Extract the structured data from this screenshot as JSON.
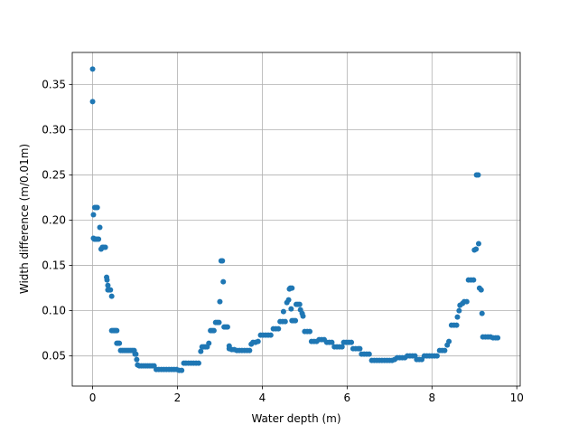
{
  "chart_data": {
    "type": "scatter",
    "xlabel": "Water depth (m)",
    "ylabel": "Width difference (m/0.01m)",
    "xlim": [
      -0.48,
      10.08
    ],
    "ylim": [
      0.0167,
      0.3853
    ],
    "xticks": [
      0,
      2,
      4,
      6,
      8,
      10
    ],
    "yticks": [
      0.05,
      0.1,
      0.15,
      0.2,
      0.25,
      0.3,
      0.35
    ],
    "grid": true,
    "marker_color": "#1f77b4",
    "series": [
      {
        "points": [
          [
            0.0,
            0.367
          ],
          [
            0.0,
            0.331
          ],
          [
            0.02,
            0.206
          ],
          [
            0.02,
            0.18
          ],
          [
            0.05,
            0.214
          ],
          [
            0.08,
            0.214
          ],
          [
            0.11,
            0.214
          ],
          [
            0.04,
            0.179
          ],
          [
            0.07,
            0.179
          ],
          [
            0.1,
            0.179
          ],
          [
            0.14,
            0.179
          ],
          [
            0.17,
            0.192
          ],
          [
            0.2,
            0.168
          ],
          [
            0.23,
            0.17
          ],
          [
            0.26,
            0.17
          ],
          [
            0.3,
            0.17
          ],
          [
            0.33,
            0.137
          ],
          [
            0.34,
            0.134
          ],
          [
            0.36,
            0.128
          ],
          [
            0.36,
            0.123
          ],
          [
            0.39,
            0.123
          ],
          [
            0.42,
            0.123
          ],
          [
            0.45,
            0.116
          ],
          [
            0.45,
            0.078
          ],
          [
            0.48,
            0.078
          ],
          [
            0.51,
            0.078
          ],
          [
            0.54,
            0.078
          ],
          [
            0.57,
            0.078
          ],
          [
            0.57,
            0.064
          ],
          [
            0.6,
            0.064
          ],
          [
            0.63,
            0.064
          ],
          [
            0.66,
            0.056
          ],
          [
            0.7,
            0.056
          ],
          [
            0.74,
            0.056
          ],
          [
            0.78,
            0.056
          ],
          [
            0.82,
            0.056
          ],
          [
            0.86,
            0.056
          ],
          [
            0.9,
            0.056
          ],
          [
            0.94,
            0.056
          ],
          [
            0.98,
            0.056
          ],
          [
            1.0,
            0.052
          ],
          [
            1.02,
            0.052
          ],
          [
            1.04,
            0.046
          ],
          [
            1.06,
            0.04
          ],
          [
            1.1,
            0.039
          ],
          [
            1.15,
            0.039
          ],
          [
            1.2,
            0.039
          ],
          [
            1.25,
            0.039
          ],
          [
            1.3,
            0.039
          ],
          [
            1.35,
            0.039
          ],
          [
            1.4,
            0.039
          ],
          [
            1.45,
            0.039
          ],
          [
            1.5,
            0.035
          ],
          [
            1.56,
            0.035
          ],
          [
            1.62,
            0.035
          ],
          [
            1.68,
            0.035
          ],
          [
            1.74,
            0.035
          ],
          [
            1.8,
            0.035
          ],
          [
            1.86,
            0.035
          ],
          [
            1.92,
            0.035
          ],
          [
            1.98,
            0.035
          ],
          [
            2.04,
            0.034
          ],
          [
            2.1,
            0.034
          ],
          [
            2.15,
            0.042
          ],
          [
            2.2,
            0.042
          ],
          [
            2.26,
            0.042
          ],
          [
            2.32,
            0.042
          ],
          [
            2.38,
            0.042
          ],
          [
            2.44,
            0.042
          ],
          [
            2.5,
            0.042
          ],
          [
            2.55,
            0.055
          ],
          [
            2.58,
            0.06
          ],
          [
            2.62,
            0.06
          ],
          [
            2.66,
            0.06
          ],
          [
            2.7,
            0.06
          ],
          [
            2.74,
            0.064
          ],
          [
            2.78,
            0.078
          ],
          [
            2.82,
            0.078
          ],
          [
            2.86,
            0.078
          ],
          [
            2.9,
            0.087
          ],
          [
            2.94,
            0.087
          ],
          [
            2.98,
            0.087
          ],
          [
            3.0,
            0.11
          ],
          [
            3.03,
            0.155
          ],
          [
            3.06,
            0.155
          ],
          [
            3.08,
            0.132
          ],
          [
            3.1,
            0.082
          ],
          [
            3.14,
            0.082
          ],
          [
            3.18,
            0.082
          ],
          [
            3.22,
            0.058
          ],
          [
            3.22,
            0.061
          ],
          [
            3.28,
            0.057
          ],
          [
            3.34,
            0.057
          ],
          [
            3.4,
            0.056
          ],
          [
            3.46,
            0.056
          ],
          [
            3.52,
            0.056
          ],
          [
            3.58,
            0.056
          ],
          [
            3.64,
            0.056
          ],
          [
            3.7,
            0.056
          ],
          [
            3.74,
            0.063
          ],
          [
            3.78,
            0.065
          ],
          [
            3.84,
            0.065
          ],
          [
            3.9,
            0.066
          ],
          [
            3.96,
            0.073
          ],
          [
            4.02,
            0.073
          ],
          [
            4.08,
            0.073
          ],
          [
            4.14,
            0.073
          ],
          [
            4.2,
            0.073
          ],
          [
            4.26,
            0.08
          ],
          [
            4.32,
            0.08
          ],
          [
            4.38,
            0.08
          ],
          [
            4.42,
            0.088
          ],
          [
            4.48,
            0.088
          ],
          [
            4.54,
            0.088
          ],
          [
            4.5,
            0.099
          ],
          [
            4.58,
            0.109
          ],
          [
            4.62,
            0.112
          ],
          [
            4.64,
            0.124
          ],
          [
            4.66,
            0.125
          ],
          [
            4.7,
            0.125
          ],
          [
            4.68,
            0.102
          ],
          [
            4.7,
            0.089
          ],
          [
            4.74,
            0.089
          ],
          [
            4.78,
            0.089
          ],
          [
            4.8,
            0.107
          ],
          [
            4.84,
            0.107
          ],
          [
            4.88,
            0.107
          ],
          [
            4.9,
            0.101
          ],
          [
            4.94,
            0.097
          ],
          [
            4.96,
            0.094
          ],
          [
            5.0,
            0.077
          ],
          [
            5.06,
            0.077
          ],
          [
            5.12,
            0.077
          ],
          [
            5.16,
            0.066
          ],
          [
            5.22,
            0.066
          ],
          [
            5.28,
            0.066
          ],
          [
            5.34,
            0.068
          ],
          [
            5.4,
            0.068
          ],
          [
            5.46,
            0.068
          ],
          [
            5.52,
            0.065
          ],
          [
            5.58,
            0.065
          ],
          [
            5.64,
            0.065
          ],
          [
            5.7,
            0.06
          ],
          [
            5.76,
            0.06
          ],
          [
            5.82,
            0.06
          ],
          [
            5.88,
            0.06
          ],
          [
            5.92,
            0.065
          ],
          [
            5.98,
            0.065
          ],
          [
            6.04,
            0.065
          ],
          [
            6.1,
            0.065
          ],
          [
            6.14,
            0.058
          ],
          [
            6.2,
            0.058
          ],
          [
            6.26,
            0.058
          ],
          [
            6.3,
            0.058
          ],
          [
            6.34,
            0.052
          ],
          [
            6.4,
            0.052
          ],
          [
            6.46,
            0.052
          ],
          [
            6.52,
            0.052
          ],
          [
            6.58,
            0.045
          ],
          [
            6.64,
            0.045
          ],
          [
            6.7,
            0.045
          ],
          [
            6.76,
            0.045
          ],
          [
            6.82,
            0.045
          ],
          [
            6.88,
            0.045
          ],
          [
            6.94,
            0.045
          ],
          [
            7.0,
            0.045
          ],
          [
            7.06,
            0.045
          ],
          [
            7.12,
            0.046
          ],
          [
            7.18,
            0.048
          ],
          [
            7.24,
            0.048
          ],
          [
            7.3,
            0.048
          ],
          [
            7.36,
            0.048
          ],
          [
            7.42,
            0.05
          ],
          [
            7.48,
            0.05
          ],
          [
            7.54,
            0.05
          ],
          [
            7.6,
            0.05
          ],
          [
            7.64,
            0.046
          ],
          [
            7.7,
            0.046
          ],
          [
            7.76,
            0.046
          ],
          [
            7.82,
            0.05
          ],
          [
            7.88,
            0.05
          ],
          [
            7.94,
            0.05
          ],
          [
            8.0,
            0.05
          ],
          [
            8.06,
            0.05
          ],
          [
            8.12,
            0.05
          ],
          [
            8.18,
            0.056
          ],
          [
            8.24,
            0.056
          ],
          [
            8.3,
            0.056
          ],
          [
            8.36,
            0.062
          ],
          [
            8.4,
            0.066
          ],
          [
            8.46,
            0.084
          ],
          [
            8.52,
            0.084
          ],
          [
            8.58,
            0.084
          ],
          [
            8.6,
            0.093
          ],
          [
            8.64,
            0.1
          ],
          [
            8.66,
            0.106
          ],
          [
            8.72,
            0.108
          ],
          [
            8.76,
            0.11
          ],
          [
            8.82,
            0.11
          ],
          [
            8.86,
            0.134
          ],
          [
            8.92,
            0.134
          ],
          [
            8.98,
            0.134
          ],
          [
            9.0,
            0.167
          ],
          [
            9.04,
            0.168
          ],
          [
            9.05,
            0.25
          ],
          [
            9.09,
            0.25
          ],
          [
            9.1,
            0.174
          ],
          [
            9.12,
            0.125
          ],
          [
            9.16,
            0.123
          ],
          [
            9.18,
            0.097
          ],
          [
            9.2,
            0.071
          ],
          [
            9.26,
            0.071
          ],
          [
            9.32,
            0.071
          ],
          [
            9.38,
            0.071
          ],
          [
            9.44,
            0.07
          ],
          [
            9.5,
            0.07
          ],
          [
            9.55,
            0.07
          ]
        ]
      }
    ]
  }
}
